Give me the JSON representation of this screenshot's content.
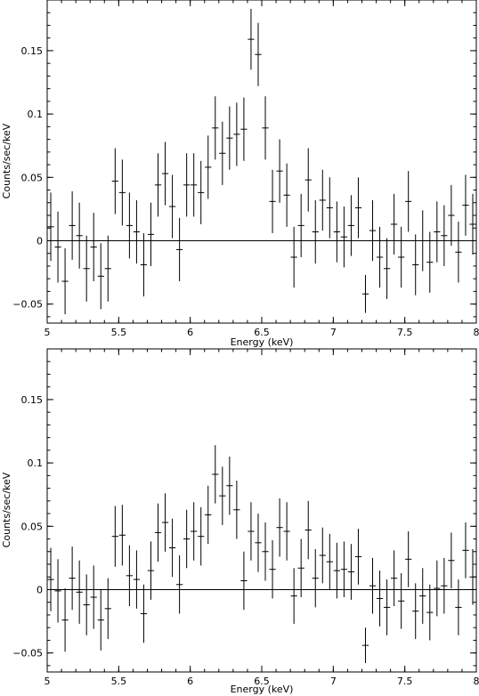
{
  "chart_data": [
    {
      "type": "scatter",
      "xlabel": "Energy (keV)",
      "ylabel": "Counts/sec/keV",
      "xlim": [
        5,
        8
      ],
      "ylim": [
        -0.065,
        0.19
      ],
      "x_ticks": [
        5,
        5.5,
        6,
        6.5,
        7,
        7.5,
        8
      ],
      "x_tick_labels": [
        "5",
        "5.5",
        "6",
        "6.5",
        "7",
        "7.5",
        "8"
      ],
      "y_ticks": [
        -0.05,
        0,
        0.05,
        0.1,
        0.15
      ],
      "y_tick_labels": [
        "−0.05",
        "0",
        "0.05",
        "0.1",
        "0.15"
      ],
      "zero_line": true,
      "x_halfwidth": 0.0225,
      "points": [
        {
          "x": 5.025,
          "y": 0.011,
          "err": 0.027
        },
        {
          "x": 5.075,
          "y": -0.005,
          "err": 0.028
        },
        {
          "x": 5.125,
          "y": -0.032,
          "err": 0.026
        },
        {
          "x": 5.175,
          "y": 0.012,
          "err": 0.027
        },
        {
          "x": 5.225,
          "y": 0.004,
          "err": 0.026
        },
        {
          "x": 5.275,
          "y": -0.022,
          "err": 0.026
        },
        {
          "x": 5.325,
          "y": -0.005,
          "err": 0.027
        },
        {
          "x": 5.375,
          "y": -0.028,
          "err": 0.026
        },
        {
          "x": 5.425,
          "y": -0.022,
          "err": 0.026
        },
        {
          "x": 5.475,
          "y": 0.047,
          "err": 0.026
        },
        {
          "x": 5.525,
          "y": 0.038,
          "err": 0.026
        },
        {
          "x": 5.575,
          "y": 0.012,
          "err": 0.026
        },
        {
          "x": 5.625,
          "y": 0.007,
          "err": 0.025
        },
        {
          "x": 5.675,
          "y": -0.019,
          "err": 0.025
        },
        {
          "x": 5.725,
          "y": 0.005,
          "err": 0.025
        },
        {
          "x": 5.775,
          "y": 0.044,
          "err": 0.025
        },
        {
          "x": 5.825,
          "y": 0.053,
          "err": 0.025
        },
        {
          "x": 5.875,
          "y": 0.027,
          "err": 0.025
        },
        {
          "x": 5.925,
          "y": -0.007,
          "err": 0.025
        },
        {
          "x": 5.975,
          "y": 0.044,
          "err": 0.025
        },
        {
          "x": 6.025,
          "y": 0.044,
          "err": 0.025
        },
        {
          "x": 6.075,
          "y": 0.038,
          "err": 0.025
        },
        {
          "x": 6.125,
          "y": 0.058,
          "err": 0.025
        },
        {
          "x": 6.175,
          "y": 0.089,
          "err": 0.025
        },
        {
          "x": 6.225,
          "y": 0.069,
          "err": 0.025
        },
        {
          "x": 6.275,
          "y": 0.081,
          "err": 0.025
        },
        {
          "x": 6.325,
          "y": 0.084,
          "err": 0.025
        },
        {
          "x": 6.375,
          "y": 0.088,
          "err": 0.025
        },
        {
          "x": 6.425,
          "y": 0.159,
          "err": 0.024
        },
        {
          "x": 6.475,
          "y": 0.147,
          "err": 0.025
        },
        {
          "x": 6.525,
          "y": 0.089,
          "err": 0.025
        },
        {
          "x": 6.575,
          "y": 0.031,
          "err": 0.025
        },
        {
          "x": 6.625,
          "y": 0.055,
          "err": 0.025
        },
        {
          "x": 6.675,
          "y": 0.036,
          "err": 0.025
        },
        {
          "x": 6.725,
          "y": -0.013,
          "err": 0.024
        },
        {
          "x": 6.775,
          "y": 0.012,
          "err": 0.025
        },
        {
          "x": 6.825,
          "y": 0.048,
          "err": 0.025
        },
        {
          "x": 6.875,
          "y": 0.007,
          "err": 0.025
        },
        {
          "x": 6.925,
          "y": 0.032,
          "err": 0.024
        },
        {
          "x": 6.975,
          "y": 0.026,
          "err": 0.024
        },
        {
          "x": 7.025,
          "y": 0.007,
          "err": 0.024
        },
        {
          "x": 7.075,
          "y": 0.003,
          "err": 0.024
        },
        {
          "x": 7.125,
          "y": 0.012,
          "err": 0.024
        },
        {
          "x": 7.175,
          "y": 0.026,
          "err": 0.024
        },
        {
          "x": 7.225,
          "y": -0.042,
          "err": 0.015
        },
        {
          "x": 7.275,
          "y": 0.008,
          "err": 0.024
        },
        {
          "x": 7.325,
          "y": -0.013,
          "err": 0.024
        },
        {
          "x": 7.375,
          "y": -0.022,
          "err": 0.024
        },
        {
          "x": 7.425,
          "y": 0.013,
          "err": 0.024
        },
        {
          "x": 7.475,
          "y": -0.013,
          "err": 0.024
        },
        {
          "x": 7.525,
          "y": 0.031,
          "err": 0.024
        },
        {
          "x": 7.575,
          "y": -0.019,
          "err": 0.024
        },
        {
          "x": 7.625,
          "y": 0.0,
          "err": 0.024
        },
        {
          "x": 7.675,
          "y": -0.017,
          "err": 0.024
        },
        {
          "x": 7.725,
          "y": 0.007,
          "err": 0.024
        },
        {
          "x": 7.775,
          "y": 0.004,
          "err": 0.024
        },
        {
          "x": 7.825,
          "y": 0.02,
          "err": 0.024
        },
        {
          "x": 7.875,
          "y": -0.009,
          "err": 0.024
        },
        {
          "x": 7.925,
          "y": 0.028,
          "err": 0.024
        },
        {
          "x": 7.975,
          "y": 0.013,
          "err": 0.024
        },
        {
          "x": 8.025,
          "y": 0.021,
          "err": 0.024
        }
      ]
    },
    {
      "type": "scatter",
      "xlabel": "Energy (keV)",
      "ylabel": "Counts/sec/keV",
      "xlim": [
        5,
        8
      ],
      "ylim": [
        -0.065,
        0.19
      ],
      "x_ticks": [
        5,
        5.5,
        6,
        6.5,
        7,
        7.5,
        8
      ],
      "x_tick_labels": [
        "5",
        "5.5",
        "6",
        "6.5",
        "7",
        "7.5",
        "8"
      ],
      "y_ticks": [
        -0.05,
        0,
        0.05,
        0.1,
        0.15
      ],
      "y_tick_labels": [
        "−0.05",
        "0",
        "0.05",
        "0.1",
        "0.15"
      ],
      "zero_line": true,
      "x_halfwidth": 0.0225,
      "points": [
        {
          "x": 5.025,
          "y": 0.008,
          "err": 0.025
        },
        {
          "x": 5.075,
          "y": -0.001,
          "err": 0.025
        },
        {
          "x": 5.125,
          "y": -0.024,
          "err": 0.025
        },
        {
          "x": 5.175,
          "y": 0.009,
          "err": 0.025
        },
        {
          "x": 5.225,
          "y": -0.002,
          "err": 0.025
        },
        {
          "x": 5.275,
          "y": -0.012,
          "err": 0.024
        },
        {
          "x": 5.325,
          "y": -0.006,
          "err": 0.025
        },
        {
          "x": 5.375,
          "y": -0.024,
          "err": 0.024
        },
        {
          "x": 5.425,
          "y": -0.015,
          "err": 0.024
        },
        {
          "x": 5.475,
          "y": 0.042,
          "err": 0.024
        },
        {
          "x": 5.525,
          "y": 0.043,
          "err": 0.024
        },
        {
          "x": 5.575,
          "y": 0.011,
          "err": 0.024
        },
        {
          "x": 5.625,
          "y": 0.008,
          "err": 0.023
        },
        {
          "x": 5.675,
          "y": -0.019,
          "err": 0.023
        },
        {
          "x": 5.725,
          "y": 0.015,
          "err": 0.023
        },
        {
          "x": 5.775,
          "y": 0.045,
          "err": 0.023
        },
        {
          "x": 5.825,
          "y": 0.053,
          "err": 0.023
        },
        {
          "x": 5.875,
          "y": 0.033,
          "err": 0.023
        },
        {
          "x": 5.925,
          "y": 0.004,
          "err": 0.023
        },
        {
          "x": 5.975,
          "y": 0.04,
          "err": 0.023
        },
        {
          "x": 6.025,
          "y": 0.046,
          "err": 0.023
        },
        {
          "x": 6.075,
          "y": 0.042,
          "err": 0.023
        },
        {
          "x": 6.125,
          "y": 0.059,
          "err": 0.023
        },
        {
          "x": 6.175,
          "y": 0.091,
          "err": 0.023
        },
        {
          "x": 6.225,
          "y": 0.074,
          "err": 0.023
        },
        {
          "x": 6.275,
          "y": 0.082,
          "err": 0.023
        },
        {
          "x": 6.325,
          "y": 0.063,
          "err": 0.023
        },
        {
          "x": 6.375,
          "y": 0.007,
          "err": 0.023
        },
        {
          "x": 6.425,
          "y": 0.046,
          "err": 0.023
        },
        {
          "x": 6.475,
          "y": 0.037,
          "err": 0.023
        },
        {
          "x": 6.525,
          "y": 0.03,
          "err": 0.023
        },
        {
          "x": 6.575,
          "y": 0.016,
          "err": 0.023
        },
        {
          "x": 6.625,
          "y": 0.049,
          "err": 0.023
        },
        {
          "x": 6.675,
          "y": 0.046,
          "err": 0.023
        },
        {
          "x": 6.725,
          "y": -0.005,
          "err": 0.022
        },
        {
          "x": 6.775,
          "y": 0.017,
          "err": 0.023
        },
        {
          "x": 6.825,
          "y": 0.047,
          "err": 0.023
        },
        {
          "x": 6.875,
          "y": 0.009,
          "err": 0.023
        },
        {
          "x": 6.925,
          "y": 0.027,
          "err": 0.022
        },
        {
          "x": 6.975,
          "y": 0.022,
          "err": 0.022
        },
        {
          "x": 7.025,
          "y": 0.015,
          "err": 0.022
        },
        {
          "x": 7.075,
          "y": 0.016,
          "err": 0.022
        },
        {
          "x": 7.125,
          "y": 0.014,
          "err": 0.022
        },
        {
          "x": 7.175,
          "y": 0.026,
          "err": 0.022
        },
        {
          "x": 7.225,
          "y": -0.044,
          "err": 0.014
        },
        {
          "x": 7.275,
          "y": 0.003,
          "err": 0.022
        },
        {
          "x": 7.325,
          "y": -0.007,
          "err": 0.022
        },
        {
          "x": 7.375,
          "y": -0.014,
          "err": 0.022
        },
        {
          "x": 7.425,
          "y": 0.009,
          "err": 0.022
        },
        {
          "x": 7.475,
          "y": -0.009,
          "err": 0.022
        },
        {
          "x": 7.525,
          "y": 0.024,
          "err": 0.022
        },
        {
          "x": 7.575,
          "y": -0.017,
          "err": 0.022
        },
        {
          "x": 7.625,
          "y": -0.005,
          "err": 0.022
        },
        {
          "x": 7.675,
          "y": -0.018,
          "err": 0.022
        },
        {
          "x": 7.725,
          "y": 0.001,
          "err": 0.022
        },
        {
          "x": 7.775,
          "y": 0.003,
          "err": 0.022
        },
        {
          "x": 7.825,
          "y": 0.023,
          "err": 0.022
        },
        {
          "x": 7.875,
          "y": -0.014,
          "err": 0.022
        },
        {
          "x": 7.925,
          "y": 0.031,
          "err": 0.022
        },
        {
          "x": 7.975,
          "y": 0.01,
          "err": 0.022
        },
        {
          "x": 8.025,
          "y": 0.02,
          "err": 0.022
        }
      ]
    }
  ]
}
